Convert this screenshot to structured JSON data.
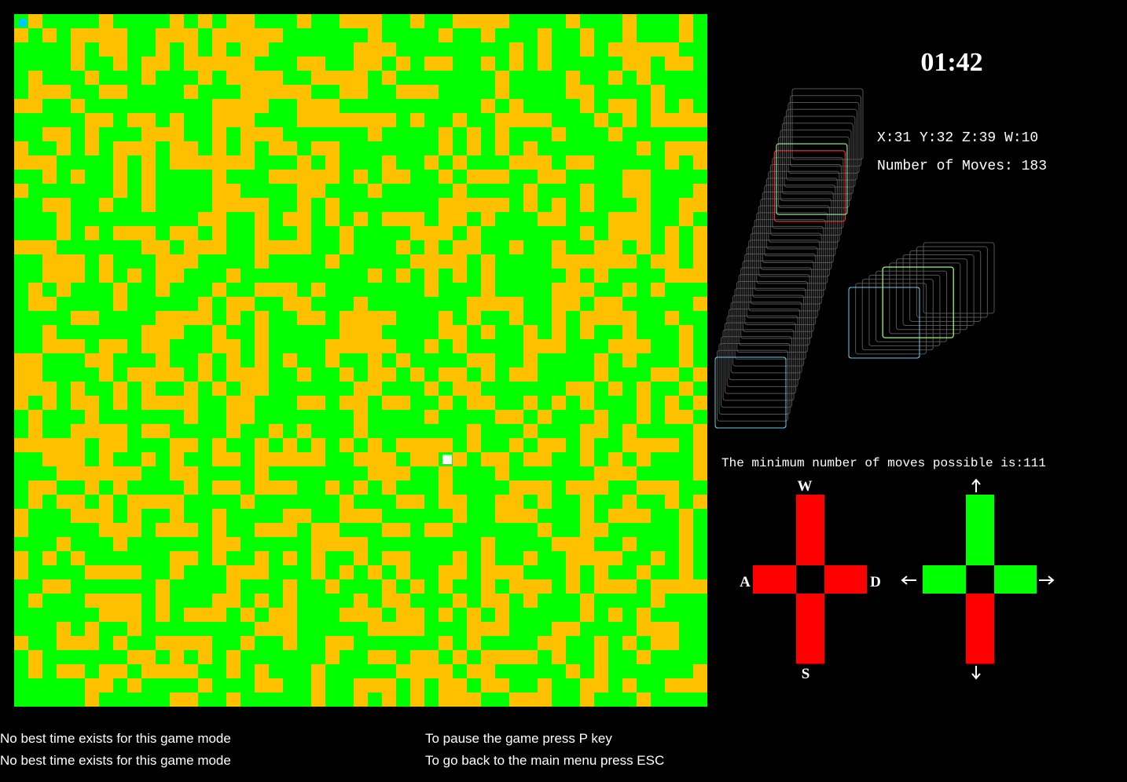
{
  "timer": "01:42",
  "status": {
    "coordinates": "X:31 Y:32 Z:39 W:10",
    "moves": "Number of Moves: 183",
    "minimum": "The minimum number of moves possible is:111"
  },
  "controls": {
    "up": "W",
    "left": "A",
    "right": "D",
    "down": "S"
  },
  "footer": {
    "best_time_1": "No best time exists for this game mode",
    "best_time_2": "No best time exists for this game mode",
    "pause": "To pause the game press P key",
    "menu": "To go back to the main menu press ESC"
  }
}
